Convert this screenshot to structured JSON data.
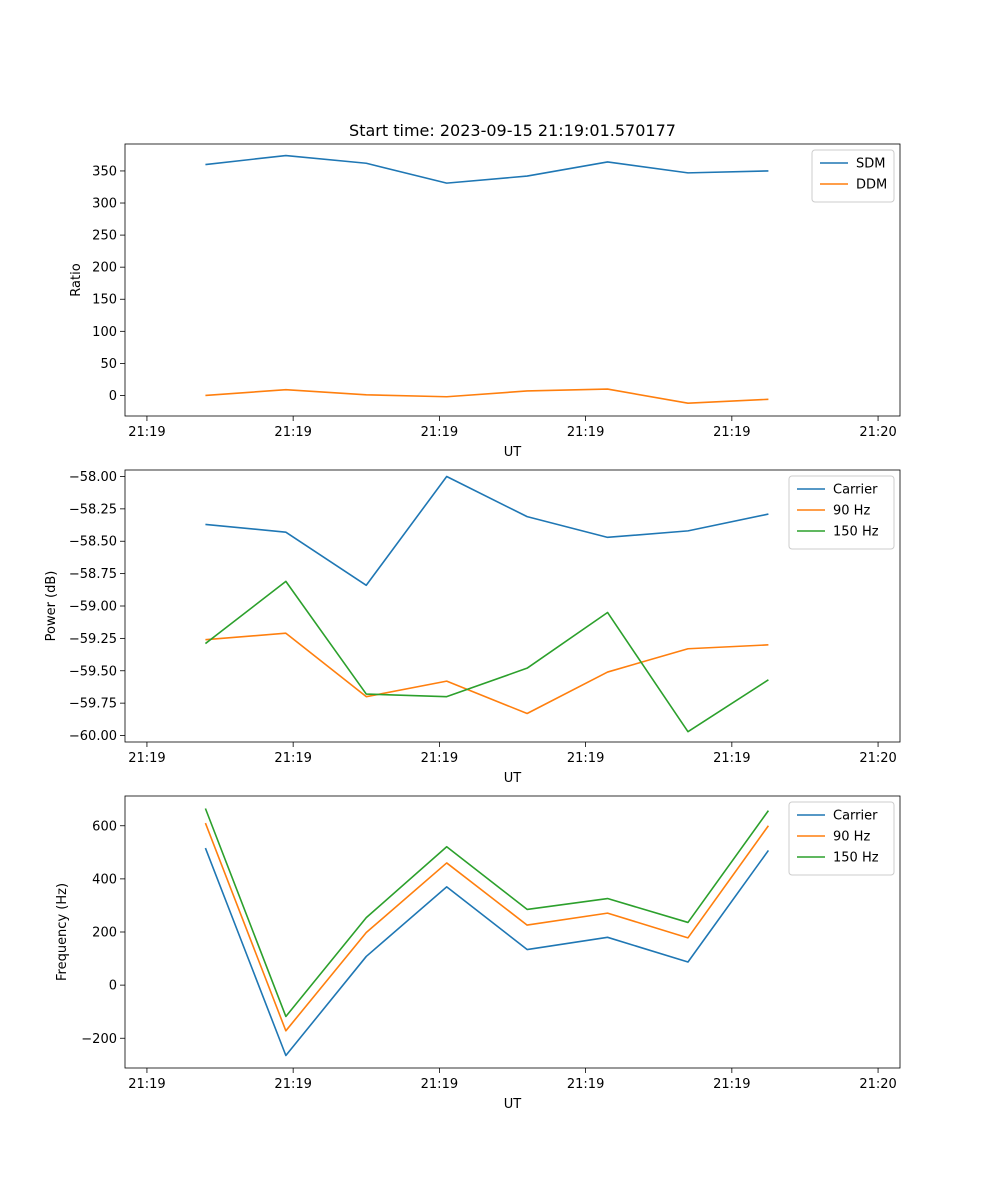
{
  "chart_data": [
    {
      "type": "line",
      "title": "Start time: 2023-09-15 21:19:01.570177",
      "xlabel": "UT",
      "ylabel": "Ratio",
      "xlim": [
        -0.15,
        5.15
      ],
      "ylim": [
        -32,
        392
      ],
      "x": [
        0.4,
        0.95,
        1.5,
        2.05,
        2.6,
        3.15,
        3.7,
        4.25
      ],
      "xticks": [
        0,
        1,
        2,
        3,
        4,
        5
      ],
      "xtick_labels": [
        "21:19",
        "21:19",
        "21:19",
        "21:19",
        "21:19",
        "21:20"
      ],
      "yticks": [
        0,
        50,
        100,
        150,
        200,
        250,
        300,
        350
      ],
      "ytick_labels": [
        "0",
        "50",
        "100",
        "150",
        "200",
        "250",
        "300",
        "350"
      ],
      "legend_position": "top-right",
      "series": [
        {
          "name": "SDM",
          "color": "#1f77b4",
          "values": [
            360,
            374,
            362,
            331,
            342,
            364,
            347,
            350
          ]
        },
        {
          "name": "DDM",
          "color": "#ff7f0e",
          "values": [
            0,
            9,
            1,
            -2,
            7,
            10,
            -12,
            -6
          ]
        }
      ]
    },
    {
      "type": "line",
      "title": "",
      "xlabel": "UT",
      "ylabel": "Power (dB)",
      "xlim": [
        -0.15,
        5.15
      ],
      "ylim": [
        -60.05,
        -57.95
      ],
      "x": [
        0.4,
        0.95,
        1.5,
        2.05,
        2.6,
        3.15,
        3.7,
        4.25
      ],
      "xticks": [
        0,
        1,
        2,
        3,
        4,
        5
      ],
      "xtick_labels": [
        "21:19",
        "21:19",
        "21:19",
        "21:19",
        "21:19",
        "21:20"
      ],
      "yticks": [
        -60.0,
        -59.75,
        -59.5,
        -59.25,
        -59.0,
        -58.75,
        -58.5,
        -58.25,
        -58.0
      ],
      "ytick_labels": [
        "−60.00",
        "−59.75",
        "−59.50",
        "−59.25",
        "−59.00",
        "−58.75",
        "−58.50",
        "−58.25",
        "−58.00"
      ],
      "legend_position": "top-right",
      "series": [
        {
          "name": "Carrier",
          "color": "#1f77b4",
          "values": [
            -58.37,
            -58.43,
            -58.84,
            -58.0,
            -58.31,
            -58.47,
            -58.42,
            -58.29
          ]
        },
        {
          "name": "90 Hz",
          "color": "#ff7f0e",
          "values": [
            -59.26,
            -59.21,
            -59.7,
            -59.58,
            -59.83,
            -59.51,
            -59.33,
            -59.3
          ]
        },
        {
          "name": "150 Hz",
          "color": "#2ca02c",
          "values": [
            -59.29,
            -58.81,
            -59.68,
            -59.7,
            -59.48,
            -59.05,
            -59.97,
            -59.57
          ]
        }
      ]
    },
    {
      "type": "line",
      "title": "",
      "xlabel": "UT",
      "ylabel": "Frequency (Hz)",
      "xlim": [
        -0.15,
        5.15
      ],
      "ylim": [
        -312,
        712
      ],
      "x": [
        0.4,
        0.95,
        1.5,
        2.05,
        2.6,
        3.15,
        3.7,
        4.25
      ],
      "xticks": [
        0,
        1,
        2,
        3,
        4,
        5
      ],
      "xtick_labels": [
        "21:19",
        "21:19",
        "21:19",
        "21:19",
        "21:19",
        "21:20"
      ],
      "yticks": [
        -200,
        0,
        200,
        400,
        600
      ],
      "ytick_labels": [
        "−200",
        "0",
        "200",
        "400",
        "600"
      ],
      "legend_position": "top-right",
      "series": [
        {
          "name": "Carrier",
          "color": "#1f77b4",
          "values": [
            516,
            -265,
            108,
            370,
            134,
            180,
            87,
            507
          ]
        },
        {
          "name": "90 Hz",
          "color": "#ff7f0e",
          "values": [
            610,
            -172,
            198,
            460,
            226,
            271,
            178,
            600
          ]
        },
        {
          "name": "150 Hz",
          "color": "#2ca02c",
          "values": [
            665,
            -118,
            254,
            521,
            285,
            326,
            236,
            657
          ]
        }
      ]
    }
  ]
}
